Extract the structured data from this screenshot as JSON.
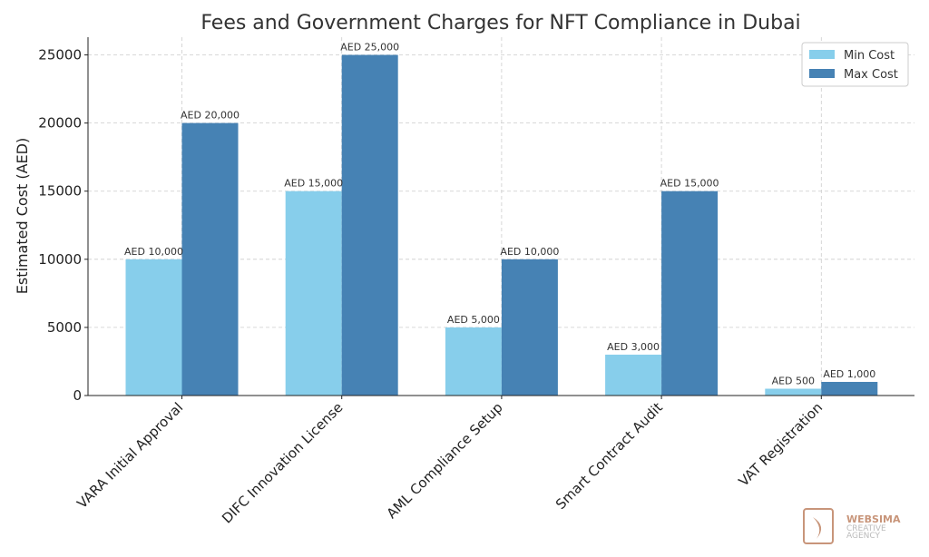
{
  "chart_data": {
    "type": "bar",
    "title": "Fees and Government Charges for NFT Compliance in Dubai",
    "xlabel": "",
    "ylabel": "Estimated Cost (AED)",
    "ylim": [
      0,
      26300
    ],
    "yticks": [
      0,
      5000,
      10000,
      15000,
      20000,
      25000
    ],
    "grid": true,
    "legend_position": "top-right",
    "categories": [
      "VARA Initial Approval",
      "DIFC Innovation License",
      "AML Compliance Setup",
      "Smart Contract Audit",
      "VAT Registration"
    ],
    "series": [
      {
        "name": "Min Cost",
        "color": "#87ceeb",
        "values": [
          10000,
          15000,
          5000,
          3000,
          500
        ],
        "labels": [
          "AED 10,000",
          "AED 15,000",
          "AED 5,000",
          "AED 3,000",
          "AED 500"
        ]
      },
      {
        "name": "Max Cost",
        "color": "#4682b4",
        "values": [
          20000,
          25000,
          10000,
          15000,
          1000
        ],
        "labels": [
          "AED 20,000",
          "AED 25,000",
          "AED 10,000",
          "AED 15,000",
          "AED 1,000"
        ]
      }
    ]
  },
  "watermark": {
    "line1": "WEBSIMA",
    "line2": "CREATIVE",
    "line3": "AGENCY"
  }
}
